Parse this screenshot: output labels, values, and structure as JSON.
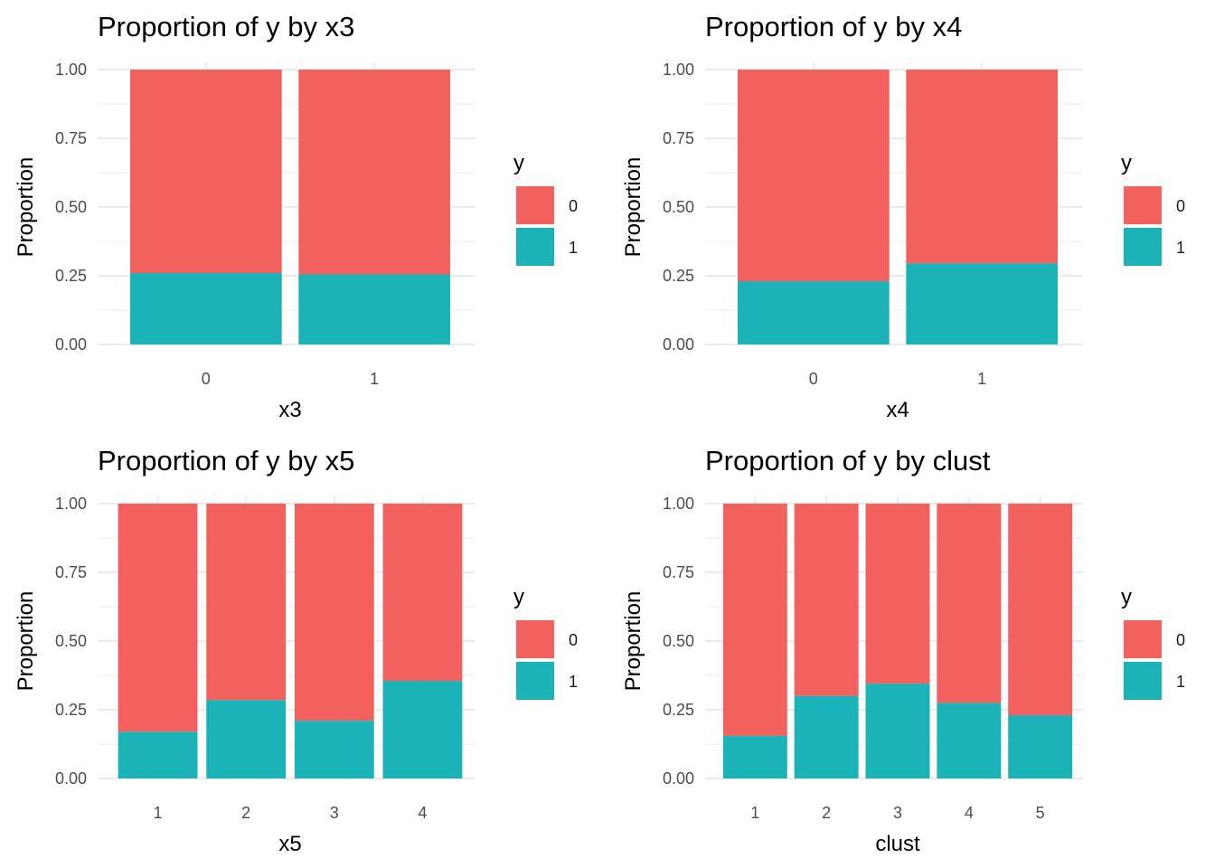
{
  "colors": {
    "y0": "#F3615E",
    "y1": "#1BB3B7",
    "grid": "#EBEBEB",
    "tick_text": "#4D4D4D"
  },
  "legend": {
    "title": "y",
    "items": [
      "0",
      "1"
    ]
  },
  "chart_data": [
    {
      "type": "bar",
      "stacked": true,
      "title": "Proportion of y by x3",
      "xlabel": "x3",
      "ylabel": "Proportion",
      "categories": [
        "0",
        "1"
      ],
      "series": [
        {
          "name": "0",
          "values": [
            0.74,
            0.745
          ]
        },
        {
          "name": "1",
          "values": [
            0.26,
            0.255
          ]
        }
      ],
      "ylim": [
        0,
        1
      ],
      "yticks": [
        "0.00",
        "0.25",
        "0.50",
        "0.75",
        "1.00"
      ]
    },
    {
      "type": "bar",
      "stacked": true,
      "title": "Proportion of y by x4",
      "xlabel": "x4",
      "ylabel": "Proportion",
      "categories": [
        "0",
        "1"
      ],
      "series": [
        {
          "name": "0",
          "values": [
            0.77,
            0.705
          ]
        },
        {
          "name": "1",
          "values": [
            0.23,
            0.295
          ]
        }
      ],
      "ylim": [
        0,
        1
      ],
      "yticks": [
        "0.00",
        "0.25",
        "0.50",
        "0.75",
        "1.00"
      ]
    },
    {
      "type": "bar",
      "stacked": true,
      "title": "Proportion of y by x5",
      "xlabel": "x5",
      "ylabel": "Proportion",
      "categories": [
        "1",
        "2",
        "3",
        "4"
      ],
      "series": [
        {
          "name": "0",
          "values": [
            0.83,
            0.715,
            0.79,
            0.645
          ]
        },
        {
          "name": "1",
          "values": [
            0.17,
            0.285,
            0.21,
            0.355
          ]
        }
      ],
      "ylim": [
        0,
        1
      ],
      "yticks": [
        "0.00",
        "0.25",
        "0.50",
        "0.75",
        "1.00"
      ]
    },
    {
      "type": "bar",
      "stacked": true,
      "title": "Proportion of y by clust",
      "xlabel": "clust",
      "ylabel": "Proportion",
      "categories": [
        "1",
        "2",
        "3",
        "4",
        "5"
      ],
      "series": [
        {
          "name": "0",
          "values": [
            0.845,
            0.7,
            0.655,
            0.725,
            0.77
          ]
        },
        {
          "name": "1",
          "values": [
            0.155,
            0.3,
            0.345,
            0.275,
            0.23
          ]
        }
      ],
      "ylim": [
        0,
        1
      ],
      "yticks": [
        "0.00",
        "0.25",
        "0.50",
        "0.75",
        "1.00"
      ]
    }
  ]
}
